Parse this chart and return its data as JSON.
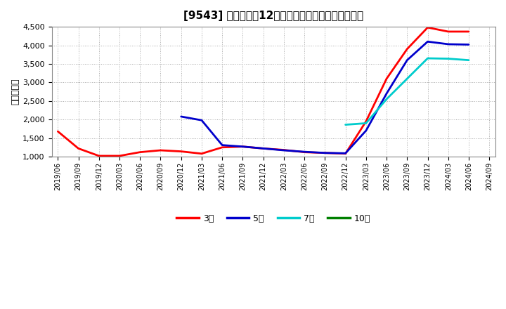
{
  "title": "[9543] 当期純利益12か月移動合計の標準偏差の推移",
  "ylabel": "（百万円）",
  "ylim": [
    1000,
    4500
  ],
  "yticks": [
    1000,
    1500,
    2000,
    2500,
    3000,
    3500,
    4000,
    4500
  ],
  "background_color": "#ffffff",
  "plot_bg_color": "#ffffff",
  "grid_color": "#aaaaaa",
  "series": {
    "3年": {
      "color": "#ff0000",
      "dates": [
        "2019/06",
        "2019/09",
        "2019/12",
        "2020/03",
        "2020/06",
        "2020/09",
        "2020/12",
        "2021/03",
        "2021/06",
        "2021/09",
        "2021/12",
        "2022/03",
        "2022/06",
        "2022/09",
        "2022/12",
        "2023/03",
        "2023/06",
        "2023/09",
        "2023/12",
        "2024/03",
        "2024/06"
      ],
      "values": [
        1680,
        1220,
        1020,
        1020,
        1120,
        1170,
        1140,
        1080,
        1250,
        1270,
        1220,
        1180,
        1120,
        1100,
        1080,
        1950,
        3100,
        3900,
        4480,
        4370,
        4370
      ]
    },
    "5年": {
      "color": "#0000cc",
      "dates": [
        "2020/12",
        "2021/03",
        "2021/06",
        "2021/09",
        "2021/12",
        "2022/03",
        "2022/06",
        "2022/09",
        "2022/12",
        "2023/03",
        "2023/06",
        "2023/09",
        "2023/12",
        "2024/03",
        "2024/06"
      ],
      "values": [
        2080,
        1980,
        1310,
        1270,
        1220,
        1170,
        1130,
        1100,
        1090,
        1700,
        2700,
        3600,
        4100,
        4030,
        4020
      ]
    },
    "7年": {
      "color": "#00cccc",
      "dates": [
        "2022/12",
        "2023/03",
        "2023/06",
        "2023/09",
        "2023/12",
        "2024/03",
        "2024/06"
      ],
      "values": [
        1860,
        1900,
        2550,
        3100,
        3650,
        3640,
        3600
      ]
    },
    "10年": {
      "color": "#008000",
      "dates": [],
      "values": []
    }
  },
  "xtick_labels": [
    "2019/06",
    "2019/09",
    "2019/12",
    "2020/03",
    "2020/06",
    "2020/09",
    "2020/12",
    "2021/03",
    "2021/06",
    "2021/09",
    "2021/12",
    "2022/03",
    "2022/06",
    "2022/09",
    "2022/12",
    "2023/03",
    "2023/06",
    "2023/09",
    "2023/12",
    "2024/03",
    "2024/06",
    "2024/09"
  ],
  "legend_labels": [
    "3年",
    "5年",
    "7年",
    "10年"
  ],
  "legend_colors": [
    "#ff0000",
    "#0000cc",
    "#00cccc",
    "#008000"
  ]
}
